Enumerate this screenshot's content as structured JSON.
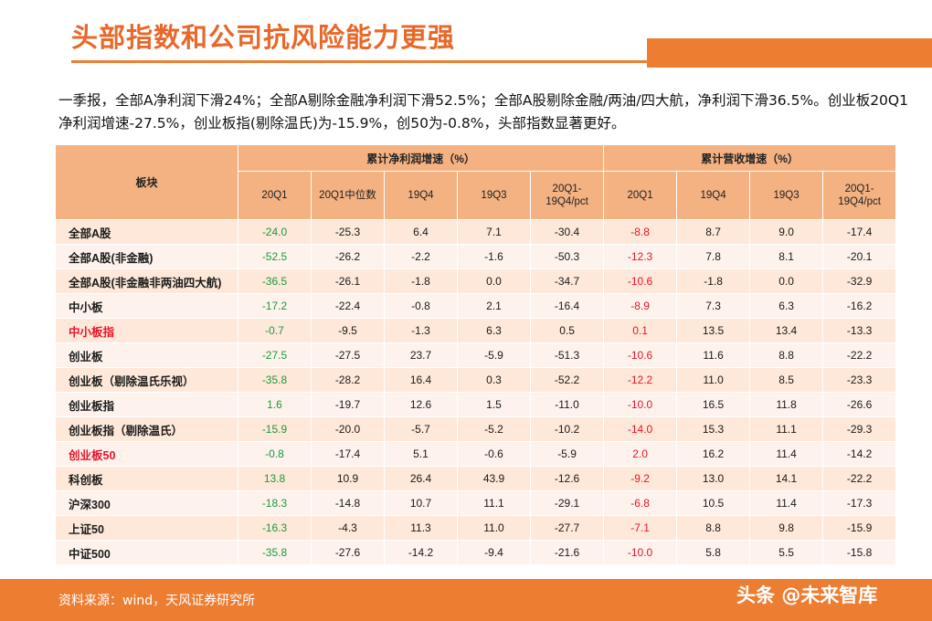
{
  "title": "头部指数和公司抗风险能力更强",
  "summary": "一季报，全部A净利润下滑24%；全部A剔除金融净利润下滑52.5%；全部A股剔除金融/两油/四大航，净利润下滑36.5%。创业板20Q1净利润增速-27.5%，创业板指(剔除温氏)为-15.9%，创50为-0.8%，头部指数显著更好。",
  "table": {
    "corner_label": "板块",
    "group_profit": "累计净利润增速（%）",
    "group_revenue": "累计营收增速（%）",
    "profit_cols": [
      "20Q1",
      "20Q1中位数",
      "19Q4",
      "19Q3",
      "20Q1-19Q4/pct"
    ],
    "revenue_cols": [
      "20Q1",
      "19Q4",
      "19Q3",
      "20Q1-19Q4/pct"
    ],
    "rows": [
      {
        "name": "全部A股",
        "v": [
          "-24.0",
          "-25.3",
          "6.4",
          "7.1",
          "-30.4",
          "-8.8",
          "8.7",
          "9.0",
          "-17.4"
        ]
      },
      {
        "name": "全部A股(非金融)",
        "v": [
          "-52.5",
          "-26.2",
          "-2.2",
          "-1.6",
          "-50.3",
          "-12.3",
          "7.8",
          "8.1",
          "-20.1"
        ]
      },
      {
        "name": "全部A股(非金融非两油四大航)",
        "v": [
          "-36.5",
          "-26.1",
          "-1.8",
          "0.0",
          "-34.7",
          "-10.6",
          "-1.8",
          "0.0",
          "-32.9"
        ]
      },
      {
        "name": "中小板",
        "v": [
          "-17.2",
          "-22.4",
          "-0.8",
          "2.1",
          "-16.4",
          "-8.9",
          "7.3",
          "6.3",
          "-16.2"
        ]
      },
      {
        "name": "中小板指",
        "v": [
          "-0.7",
          "-9.5",
          "-1.3",
          "6.3",
          "0.5",
          "0.1",
          "13.5",
          "13.4",
          "-13.3"
        ]
      },
      {
        "name": "创业板",
        "v": [
          "-27.5",
          "-27.5",
          "23.7",
          "-5.9",
          "-51.3",
          "-10.6",
          "11.6",
          "8.8",
          "-22.2"
        ]
      },
      {
        "name": "创业板（剔除温氏乐视）",
        "v": [
          "-35.8",
          "-28.2",
          "16.4",
          "0.3",
          "-52.2",
          "-12.2",
          "11.0",
          "8.5",
          "-23.3"
        ]
      },
      {
        "name": "创业板指",
        "v": [
          "1.6",
          "-19.7",
          "12.6",
          "1.5",
          "-11.0",
          "-10.0",
          "16.5",
          "11.8",
          "-26.6"
        ]
      },
      {
        "name": "创业板指（剔除温氏）",
        "v": [
          "-15.9",
          "-20.0",
          "-5.7",
          "-5.2",
          "-10.2",
          "-14.0",
          "15.3",
          "11.1",
          "-29.3"
        ]
      },
      {
        "name": "创业板50",
        "v": [
          "-0.8",
          "-17.4",
          "5.1",
          "-0.6",
          "-5.9",
          "2.0",
          "16.2",
          "11.4",
          "-14.2"
        ]
      },
      {
        "name": "科创板",
        "v": [
          "13.8",
          "10.9",
          "26.4",
          "43.9",
          "-12.6",
          "-9.2",
          "13.0",
          "14.1",
          "-22.2"
        ]
      },
      {
        "name": "沪深300",
        "v": [
          "-18.3",
          "-14.8",
          "10.7",
          "11.1",
          "-29.1",
          "-6.8",
          "10.5",
          "11.4",
          "-17.3"
        ]
      },
      {
        "name": "上证50",
        "v": [
          "-16.3",
          "-4.3",
          "11.3",
          "11.0",
          "-27.7",
          "-7.1",
          "8.8",
          "9.8",
          "-15.9"
        ]
      },
      {
        "name": "中证500",
        "v": [
          "-35.8",
          "-27.6",
          "-14.2",
          "-9.4",
          "-21.6",
          "-10.0",
          "5.8",
          "5.5",
          "-15.8"
        ]
      }
    ],
    "highlight_rows": [
      4,
      9
    ]
  },
  "colors": {
    "accent": "#ed7d31",
    "profit_20q1": "#1a9a3c",
    "revenue_20q1": "#e8142a",
    "highlight": "#e8142a"
  },
  "footer": {
    "source": "资料来源：wind，天风证券研究所",
    "watermark": "头条 @未来智库"
  }
}
